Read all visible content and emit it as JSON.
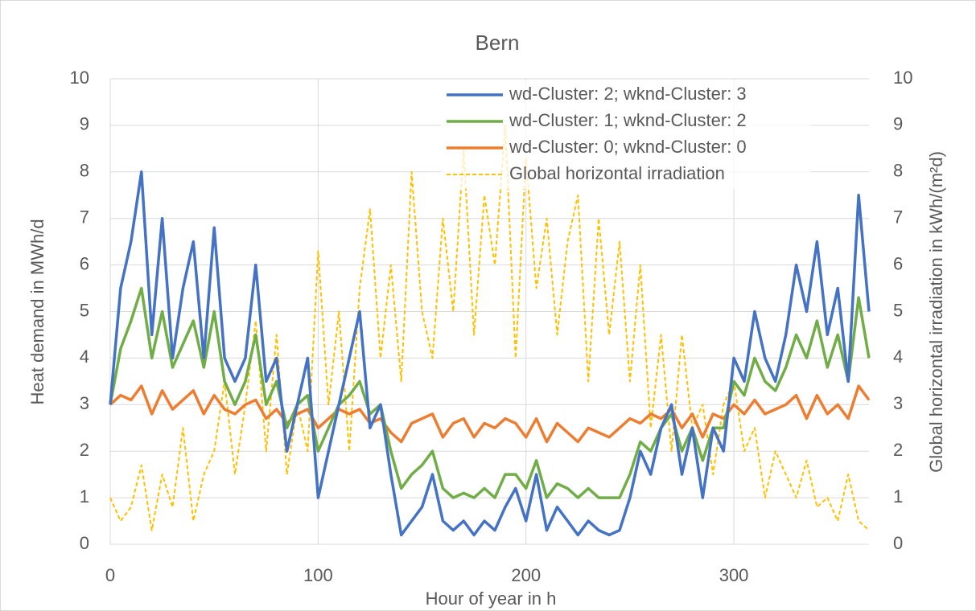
{
  "chart_data": {
    "type": "line",
    "title": "Bern",
    "x_label": "Hour of year in h",
    "y_label": "Heat demand in MWh/d",
    "y2_label": "Global horizontal irradiation in kWh/(m²d)",
    "xlim": [
      0,
      365
    ],
    "xticks": [
      0,
      100,
      200,
      300
    ],
    "ylim": [
      0,
      10
    ],
    "yticks": [
      0,
      1,
      2,
      3,
      4,
      5,
      6,
      7,
      8,
      9,
      10
    ],
    "y2lim": [
      0,
      10
    ],
    "y2ticks": [
      0,
      1,
      2,
      3,
      4,
      5,
      6,
      7,
      8,
      9,
      10
    ],
    "grid": true,
    "legend": "upper right",
    "x": [
      0,
      5,
      10,
      15,
      20,
      25,
      30,
      35,
      40,
      45,
      50,
      55,
      60,
      65,
      70,
      75,
      80,
      85,
      90,
      95,
      100,
      105,
      110,
      115,
      120,
      125,
      130,
      135,
      140,
      145,
      150,
      155,
      160,
      165,
      170,
      175,
      180,
      185,
      190,
      195,
      200,
      205,
      210,
      215,
      220,
      225,
      230,
      235,
      240,
      245,
      250,
      255,
      260,
      265,
      270,
      275,
      280,
      285,
      290,
      295,
      300,
      305,
      310,
      315,
      320,
      325,
      330,
      335,
      340,
      345,
      350,
      355,
      360,
      365
    ],
    "series": [
      {
        "name": "wd-Cluster: 2; wknd-Cluster: 3",
        "color": "#4472c4",
        "values": [
          3.0,
          5.5,
          6.5,
          8.0,
          4.5,
          7.0,
          4.0,
          5.5,
          6.5,
          4.0,
          6.8,
          4.0,
          3.5,
          4.0,
          6.0,
          3.5,
          4.0,
          2.0,
          3.0,
          4.0,
          1.0,
          2.0,
          3.0,
          4.0,
          5.0,
          2.5,
          3.0,
          1.5,
          0.2,
          0.5,
          0.8,
          1.5,
          0.5,
          0.3,
          0.5,
          0.2,
          0.5,
          0.3,
          0.8,
          1.2,
          0.5,
          1.5,
          0.3,
          0.8,
          0.5,
          0.2,
          0.5,
          0.3,
          0.2,
          0.3,
          1.0,
          2.0,
          1.5,
          2.5,
          3.0,
          1.5,
          2.5,
          1.0,
          2.5,
          2.0,
          4.0,
          3.5,
          5.0,
          4.0,
          3.5,
          4.5,
          6.0,
          5.0,
          6.5,
          4.5,
          5.5,
          3.5,
          7.5,
          5.0
        ]
      },
      {
        "name": "wd-Cluster: 1; wknd-Cluster: 2",
        "color": "#70ad47",
        "values": [
          3.0,
          4.2,
          4.8,
          5.5,
          4.0,
          5.0,
          3.8,
          4.3,
          4.8,
          3.8,
          5.0,
          3.5,
          3.0,
          3.5,
          4.5,
          3.0,
          3.5,
          2.5,
          3.0,
          3.2,
          2.0,
          2.5,
          3.0,
          3.2,
          3.5,
          2.8,
          3.0,
          2.0,
          1.2,
          1.5,
          1.7,
          2.0,
          1.2,
          1.0,
          1.1,
          1.0,
          1.2,
          1.0,
          1.5,
          1.5,
          1.2,
          1.8,
          1.0,
          1.3,
          1.2,
          1.0,
          1.2,
          1.0,
          1.0,
          1.0,
          1.5,
          2.2,
          2.0,
          2.5,
          2.8,
          2.0,
          2.5,
          1.8,
          2.5,
          2.5,
          3.5,
          3.2,
          4.0,
          3.5,
          3.3,
          3.8,
          4.5,
          4.0,
          4.8,
          3.8,
          4.5,
          3.5,
          5.3,
          4.0
        ]
      },
      {
        "name": "wd-Cluster: 0; wknd-Cluster: 0",
        "color": "#ed7d31",
        "values": [
          3.0,
          3.2,
          3.1,
          3.4,
          2.8,
          3.3,
          2.9,
          3.1,
          3.3,
          2.8,
          3.2,
          2.9,
          2.8,
          3.0,
          3.1,
          2.7,
          2.9,
          2.6,
          2.8,
          2.9,
          2.5,
          2.7,
          2.9,
          2.8,
          2.9,
          2.6,
          2.7,
          2.4,
          2.2,
          2.6,
          2.7,
          2.8,
          2.3,
          2.6,
          2.7,
          2.3,
          2.6,
          2.5,
          2.7,
          2.6,
          2.3,
          2.7,
          2.2,
          2.6,
          2.4,
          2.2,
          2.5,
          2.4,
          2.3,
          2.5,
          2.7,
          2.6,
          2.8,
          2.7,
          2.9,
          2.5,
          2.8,
          2.3,
          2.8,
          2.7,
          3.0,
          2.8,
          3.1,
          2.8,
          2.9,
          3.0,
          3.2,
          2.7,
          3.2,
          2.8,
          3.0,
          2.7,
          3.4,
          3.1
        ]
      },
      {
        "name": "Global horizontal irradiation",
        "color": "#ffc000",
        "dashed": true,
        "axis": "y2",
        "values": [
          1.0,
          0.5,
          0.8,
          1.7,
          0.3,
          1.5,
          0.8,
          2.5,
          0.5,
          1.5,
          2.0,
          3.5,
          1.5,
          3.0,
          4.8,
          2.0,
          4.5,
          1.5,
          3.0,
          2.0,
          6.3,
          3.0,
          5.0,
          2.0,
          5.5,
          7.2,
          4.0,
          6.0,
          3.5,
          8.0,
          5.0,
          4.0,
          7.0,
          5.0,
          8.5,
          4.5,
          7.5,
          6.0,
          9.0,
          4.0,
          8.3,
          5.5,
          7.0,
          4.5,
          6.5,
          7.5,
          3.5,
          7.0,
          4.5,
          6.5,
          3.5,
          6.0,
          2.5,
          4.5,
          2.0,
          4.5,
          2.5,
          3.0,
          1.5,
          3.0,
          3.5,
          2.0,
          2.5,
          1.0,
          2.0,
          1.5,
          1.0,
          1.8,
          0.8,
          1.0,
          0.5,
          1.5,
          0.5,
          0.3
        ]
      }
    ]
  }
}
